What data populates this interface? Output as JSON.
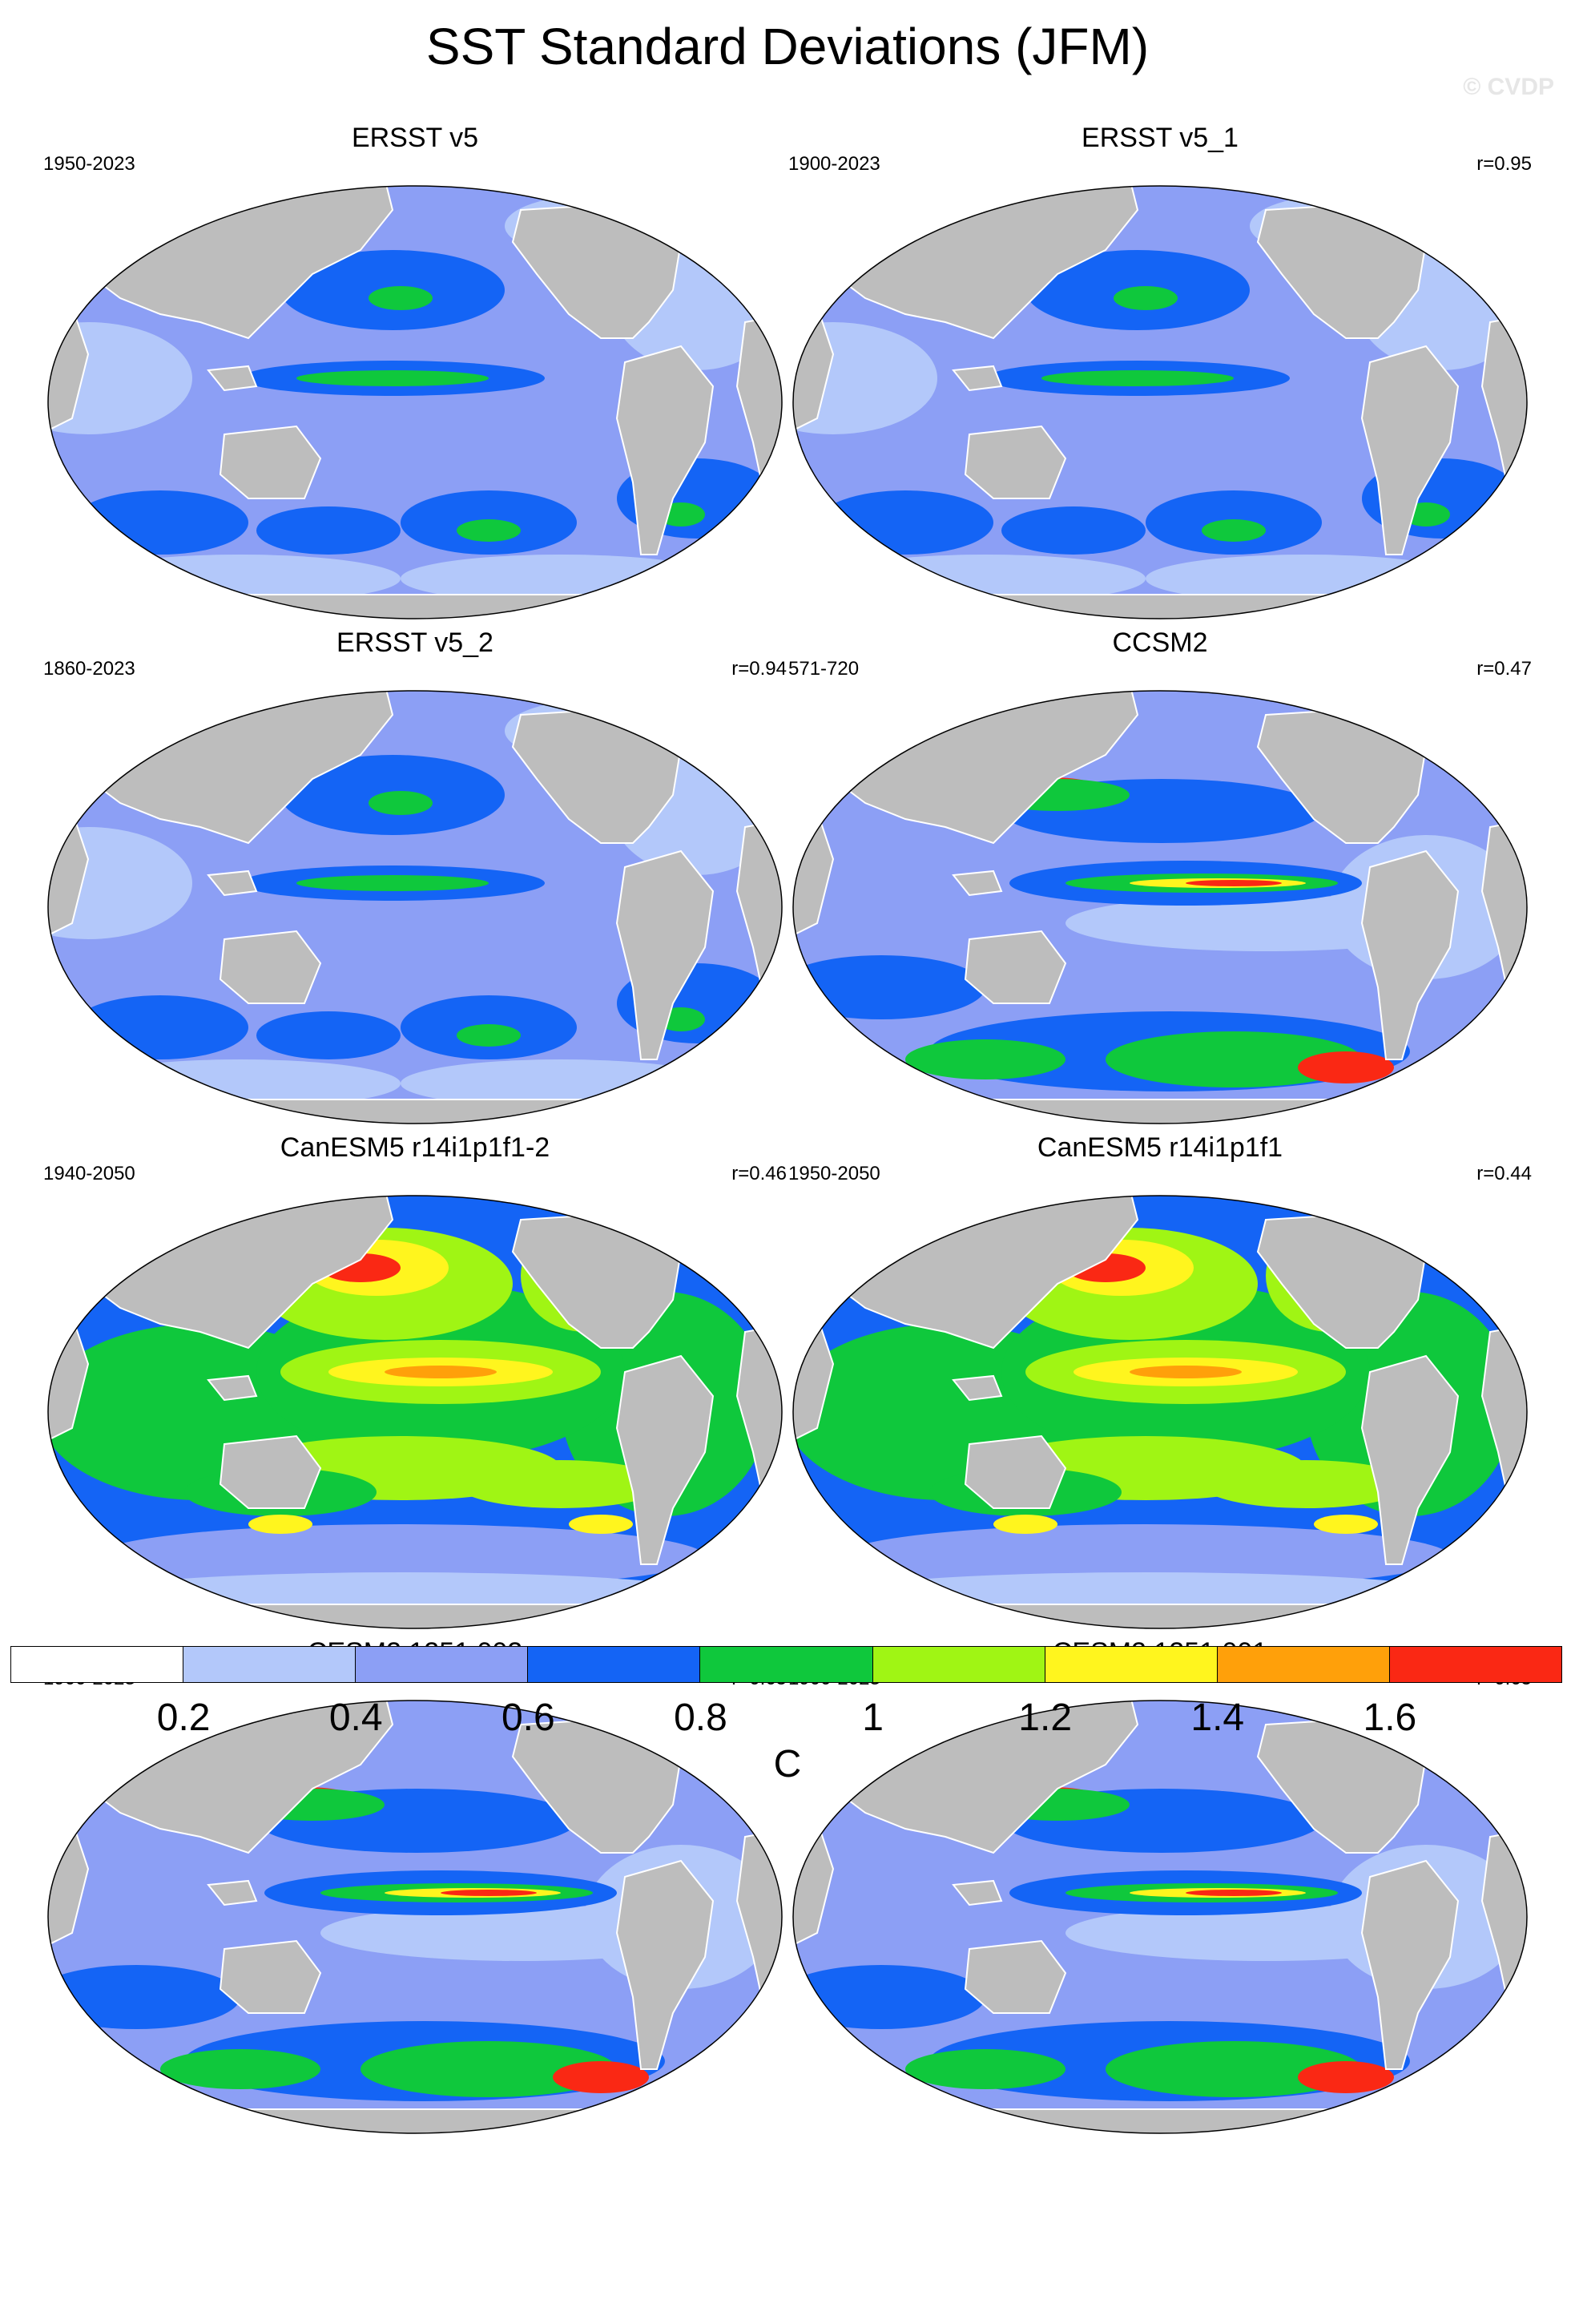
{
  "title": "SST Standard Deviations (JFM)",
  "watermark": "© CVDP",
  "colors": {
    "land": "#bdbdbd",
    "ocean_edge": "#ffffff"
  },
  "panels": [
    {
      "title": "ERSST v5",
      "years": "1950-2023",
      "corr": "",
      "level": 0
    },
    {
      "title": "ERSST v5_1",
      "years": "1900-2023",
      "corr": "r=0.95",
      "level": 0
    },
    {
      "title": "ERSST v5_2",
      "years": "1860-2023",
      "corr": "r=0.94",
      "level": 0
    },
    {
      "title": "CCSM2",
      "years": "571-720",
      "corr": "r=0.47",
      "level": 1
    },
    {
      "title": "CanESM5 r14i1p1f1-2",
      "years": "1940-2050",
      "corr": "r=0.46",
      "level": 2
    },
    {
      "title": "CanESM5 r14i1p1f1",
      "years": "1950-2050",
      "corr": "r=0.44",
      "level": 2
    },
    {
      "title": "CESM2 1251.002",
      "years": "1900-2023",
      "corr": "r=0.65",
      "level": 1
    },
    {
      "title": "CESM2 1251.001",
      "years": "1900-2023",
      "corr": "r=0.65",
      "level": 1
    }
  ],
  "colorbar": {
    "colors": [
      "#ffffff",
      "#b3c8fa",
      "#8c9ff5",
      "#1464f5",
      "#0fc83c",
      "#a0f514",
      "#fff51e",
      "#ffa00a",
      "#fa2814"
    ],
    "labels": [
      "0.2",
      "0.4",
      "0.6",
      "0.8",
      "1",
      "1.2",
      "1.4",
      "1.6"
    ],
    "unit": "C"
  }
}
